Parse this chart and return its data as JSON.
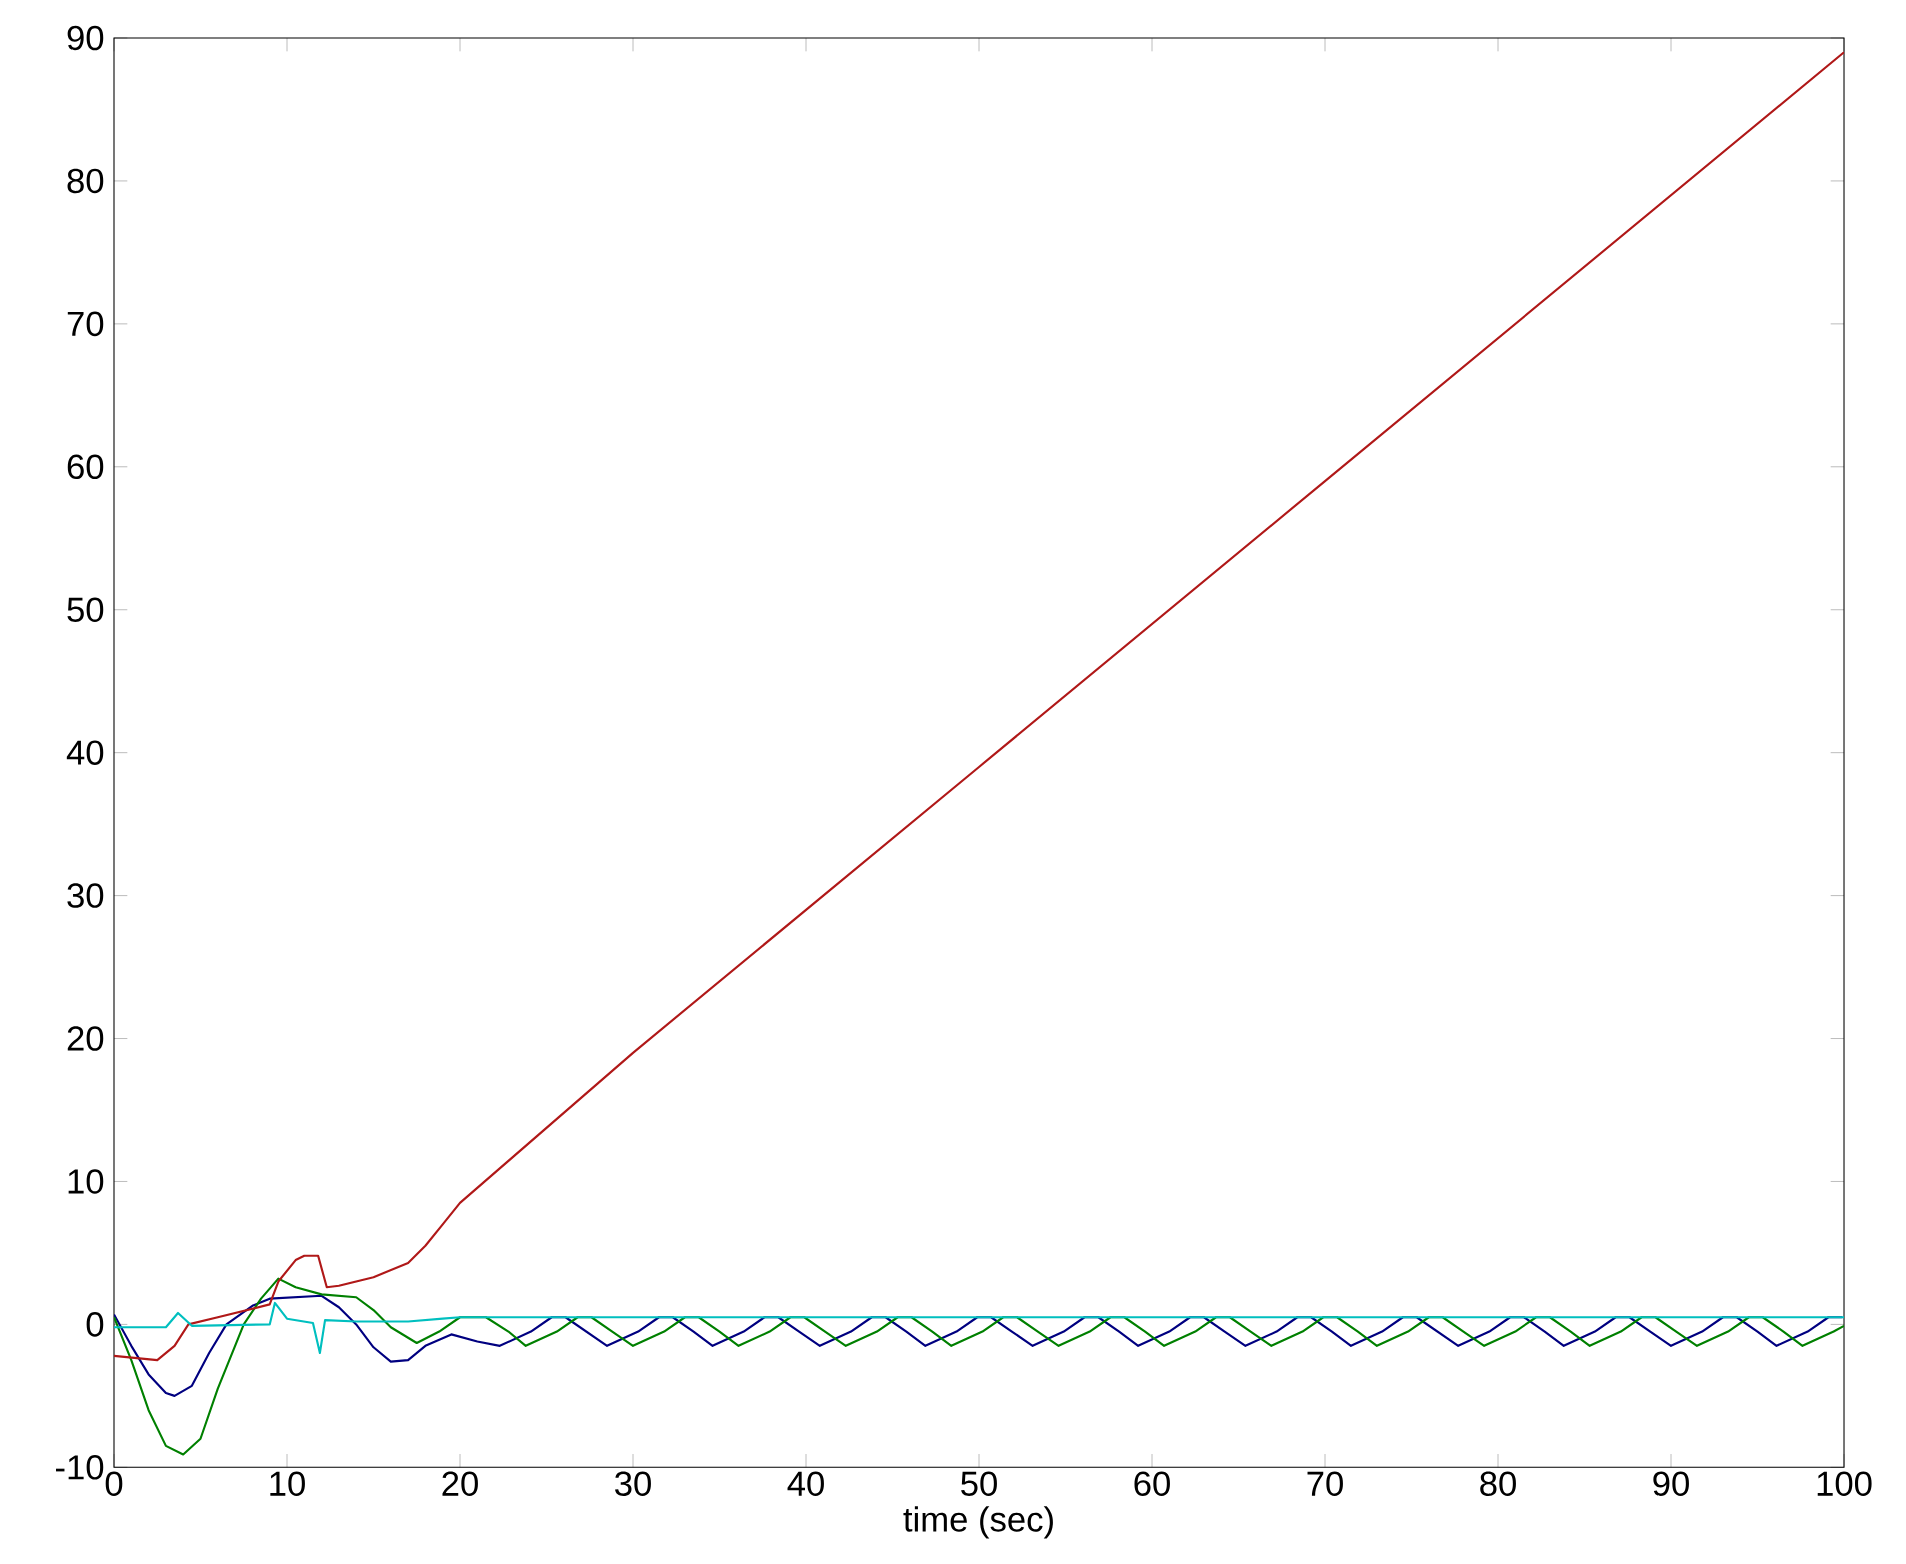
{
  "chart_data": {
    "type": "line",
    "xlabel": "time (sec)",
    "xlim": [
      0,
      100
    ],
    "ylim": [
      -10,
      90
    ],
    "xticks": [
      0,
      10,
      20,
      30,
      40,
      50,
      60,
      70,
      80,
      90,
      100
    ],
    "yticks": [
      -10,
      0,
      10,
      20,
      30,
      40,
      50,
      60,
      70,
      80,
      90
    ],
    "grid": false,
    "marker": "none",
    "line_style": "solid",
    "series": [
      {
        "color": "#000080",
        "x": [
          0,
          1,
          2,
          3,
          3.5,
          4.5,
          5.5,
          6.5,
          8,
          9,
          12,
          13,
          14,
          15,
          16,
          17,
          18,
          19.5,
          21,
          22.3,
          24.1,
          25.3,
          26.1,
          27.3,
          28.5,
          30.3,
          31.5,
          32.3,
          33.5,
          34.6,
          36.4,
          37.6,
          38.4,
          39.6,
          40.8,
          42.6,
          43.8,
          44.6,
          45.8,
          46.9,
          48.7,
          49.9,
          50.7,
          51.9,
          53.1,
          54.9,
          56.1,
          56.9,
          58.1,
          59.2,
          61.0,
          62.2,
          63.0,
          64.2,
          65.4,
          67.2,
          68.4,
          69.2,
          70.4,
          71.5,
          73.3,
          74.5,
          75.3,
          76.5,
          77.7,
          79.5,
          80.7,
          81.5,
          82.7,
          83.8,
          85.6,
          86.8,
          87.6,
          88.8,
          90.0,
          91.8,
          93.0,
          93.8,
          95.0,
          96.1,
          97.9,
          99.1,
          99.9
        ],
        "values": [
          0.7,
          -1.5,
          -3.5,
          -4.8,
          -5,
          -4.3,
          -2,
          0,
          1.3,
          1.8,
          2,
          1.2,
          0,
          -1.6,
          -2.6,
          -2.5,
          -1.5,
          -0.7,
          -1.2,
          -1.5,
          -0.5,
          0.5,
          0.5,
          -0.5,
          -1.5,
          -0.5,
          0.5,
          0.5,
          -0.5,
          -1.5,
          -0.5,
          0.5,
          0.5,
          -0.5,
          -1.5,
          -0.5,
          0.5,
          0.5,
          -0.5,
          -1.5,
          -0.5,
          0.5,
          0.5,
          -0.5,
          -1.5,
          -0.5,
          0.5,
          0.5,
          -0.5,
          -1.5,
          -0.5,
          0.5,
          0.5,
          -0.5,
          -1.5,
          -0.5,
          0.5,
          0.5,
          -0.5,
          -1.5,
          -0.5,
          0.5,
          0.5,
          -0.5,
          -1.5,
          -0.5,
          0.5,
          0.5,
          -0.5,
          -1.5,
          -0.5,
          0.5,
          0.5,
          -0.5,
          -1.5,
          -0.5,
          0.5,
          0.5,
          -0.5,
          -1.5,
          -0.5,
          0.5,
          0.5
        ]
      },
      {
        "color": "#008000",
        "x": [
          0,
          1,
          2,
          3,
          4,
          5,
          6,
          7,
          7.5,
          8.5,
          9.5,
          10.5,
          12,
          14,
          15,
          16,
          17.5,
          18.8,
          20,
          21.5,
          22.8,
          23.8,
          25.6,
          26.8,
          27.6,
          28.8,
          30.0,
          31.8,
          33.0,
          33.8,
          35.0,
          36.1,
          37.9,
          39.1,
          39.9,
          41.1,
          42.3,
          44.1,
          45.3,
          46.1,
          47.3,
          48.4,
          50.2,
          51.4,
          52.2,
          53.4,
          54.6,
          56.4,
          57.6,
          58.4,
          59.6,
          60.7,
          62.5,
          63.7,
          64.5,
          65.7,
          66.9,
          68.7,
          69.9,
          70.7,
          71.9,
          73.0,
          74.8,
          76.0,
          76.8,
          78.0,
          79.2,
          81.0,
          82.2,
          83.0,
          84.2,
          85.3,
          87.1,
          88.3,
          89.1,
          90.3,
          91.5,
          93.3,
          94.5,
          95.3,
          96.5,
          97.6,
          99.4,
          100
        ],
        "values": [
          0.5,
          -2.5,
          -6,
          -8.5,
          -9.1,
          -8,
          -4.5,
          -1.5,
          0,
          1.8,
          3.2,
          2.6,
          2.1,
          1.9,
          1,
          -0.2,
          -1.3,
          -0.5,
          0.5,
          0.5,
          -0.5,
          -1.5,
          -0.5,
          0.5,
          0.5,
          -0.5,
          -1.5,
          -0.5,
          0.5,
          0.5,
          -0.5,
          -1.5,
          -0.5,
          0.5,
          0.5,
          -0.5,
          -1.5,
          -0.5,
          0.5,
          0.5,
          -0.5,
          -1.5,
          -0.5,
          0.5,
          0.5,
          -0.5,
          -1.5,
          -0.5,
          0.5,
          0.5,
          -0.5,
          -1.5,
          -0.5,
          0.5,
          0.5,
          -0.5,
          -1.5,
          -0.5,
          0.5,
          0.5,
          -0.5,
          -1.5,
          -0.5,
          0.5,
          0.5,
          -0.5,
          -1.5,
          -0.5,
          0.5,
          0.5,
          -0.5,
          -1.5,
          -0.5,
          0.5,
          0.5,
          -0.5,
          -1.5,
          -0.5,
          0.5,
          0.5,
          -0.5,
          -1.5,
          -0.5,
          -0.1
        ]
      },
      {
        "color": "#b01818",
        "x": [
          0,
          2.5,
          3.5,
          4.3,
          6,
          9,
          9.5,
          10.5,
          11,
          11.8,
          12.3,
          13,
          15,
          17,
          18,
          19,
          20,
          30,
          50,
          70,
          100
        ],
        "values": [
          -2.2,
          -2.5,
          -1.5,
          0,
          0.5,
          1.4,
          3,
          4.5,
          4.8,
          4.8,
          2.6,
          2.7,
          3.3,
          4.3,
          5.5,
          7,
          8.5,
          19,
          39,
          59,
          89
        ]
      },
      {
        "color": "#00bfbf",
        "x": [
          0,
          3,
          3.7,
          4.5,
          9,
          9.3,
          10,
          11.5,
          11.9,
          12.2,
          14,
          17,
          19,
          20,
          100
        ],
        "values": [
          -0.2,
          -0.2,
          0.8,
          -0.1,
          0,
          1.5,
          0.4,
          0.1,
          -2,
          0.3,
          0.2,
          0.2,
          0.4,
          0.5,
          0.5
        ]
      }
    ]
  }
}
